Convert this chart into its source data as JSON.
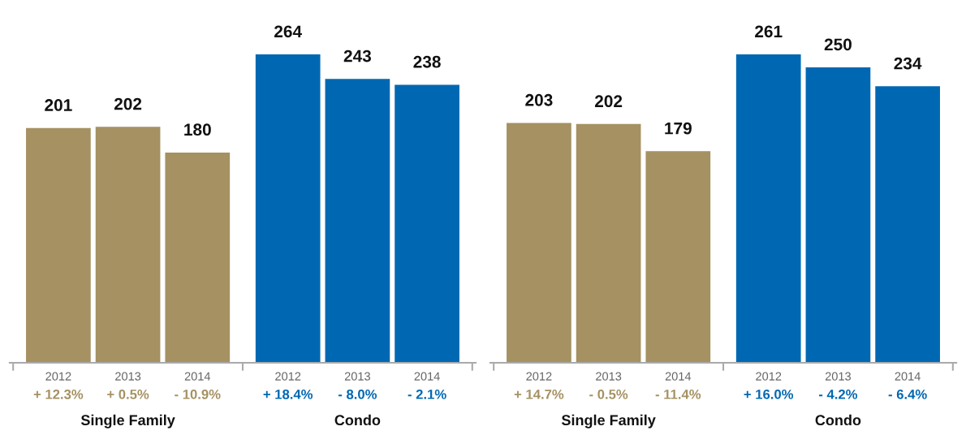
{
  "chart_data": [
    {
      "type": "bar",
      "categories": [
        "2012",
        "2013",
        "2014",
        "2012",
        "2013",
        "2014"
      ],
      "values": [
        201,
        202,
        180,
        264,
        243,
        238
      ],
      "colors": [
        "#a59162",
        "#a59162",
        "#a59162",
        "#0068b3",
        "#0068b3",
        "#0068b3"
      ],
      "data_labels": true,
      "annotations": [
        "+ 12.3%",
        "+ 0.5%",
        "- 10.9%",
        "+ 18.4%",
        "- 8.0%",
        "- 2.1%",
        "Single Family",
        "Condo"
      ]
    },
    {
      "type": "bar",
      "categories": [
        "2012",
        "2013",
        "2014",
        "2012",
        "2013",
        "2014"
      ],
      "values": [
        203,
        202,
        179,
        261,
        250,
        234
      ],
      "colors": [
        "#a59162",
        "#a59162",
        "#a59162",
        "#0068b3",
        "#0068b3",
        "#0068b3"
      ],
      "data_labels": true,
      "annotations": [
        "+ 14.7%",
        "- 0.5%",
        "- 11.4%",
        "+ 16.0%",
        "- 4.2%",
        "- 6.4%",
        "Single Family",
        "Condo"
      ]
    }
  ]
}
